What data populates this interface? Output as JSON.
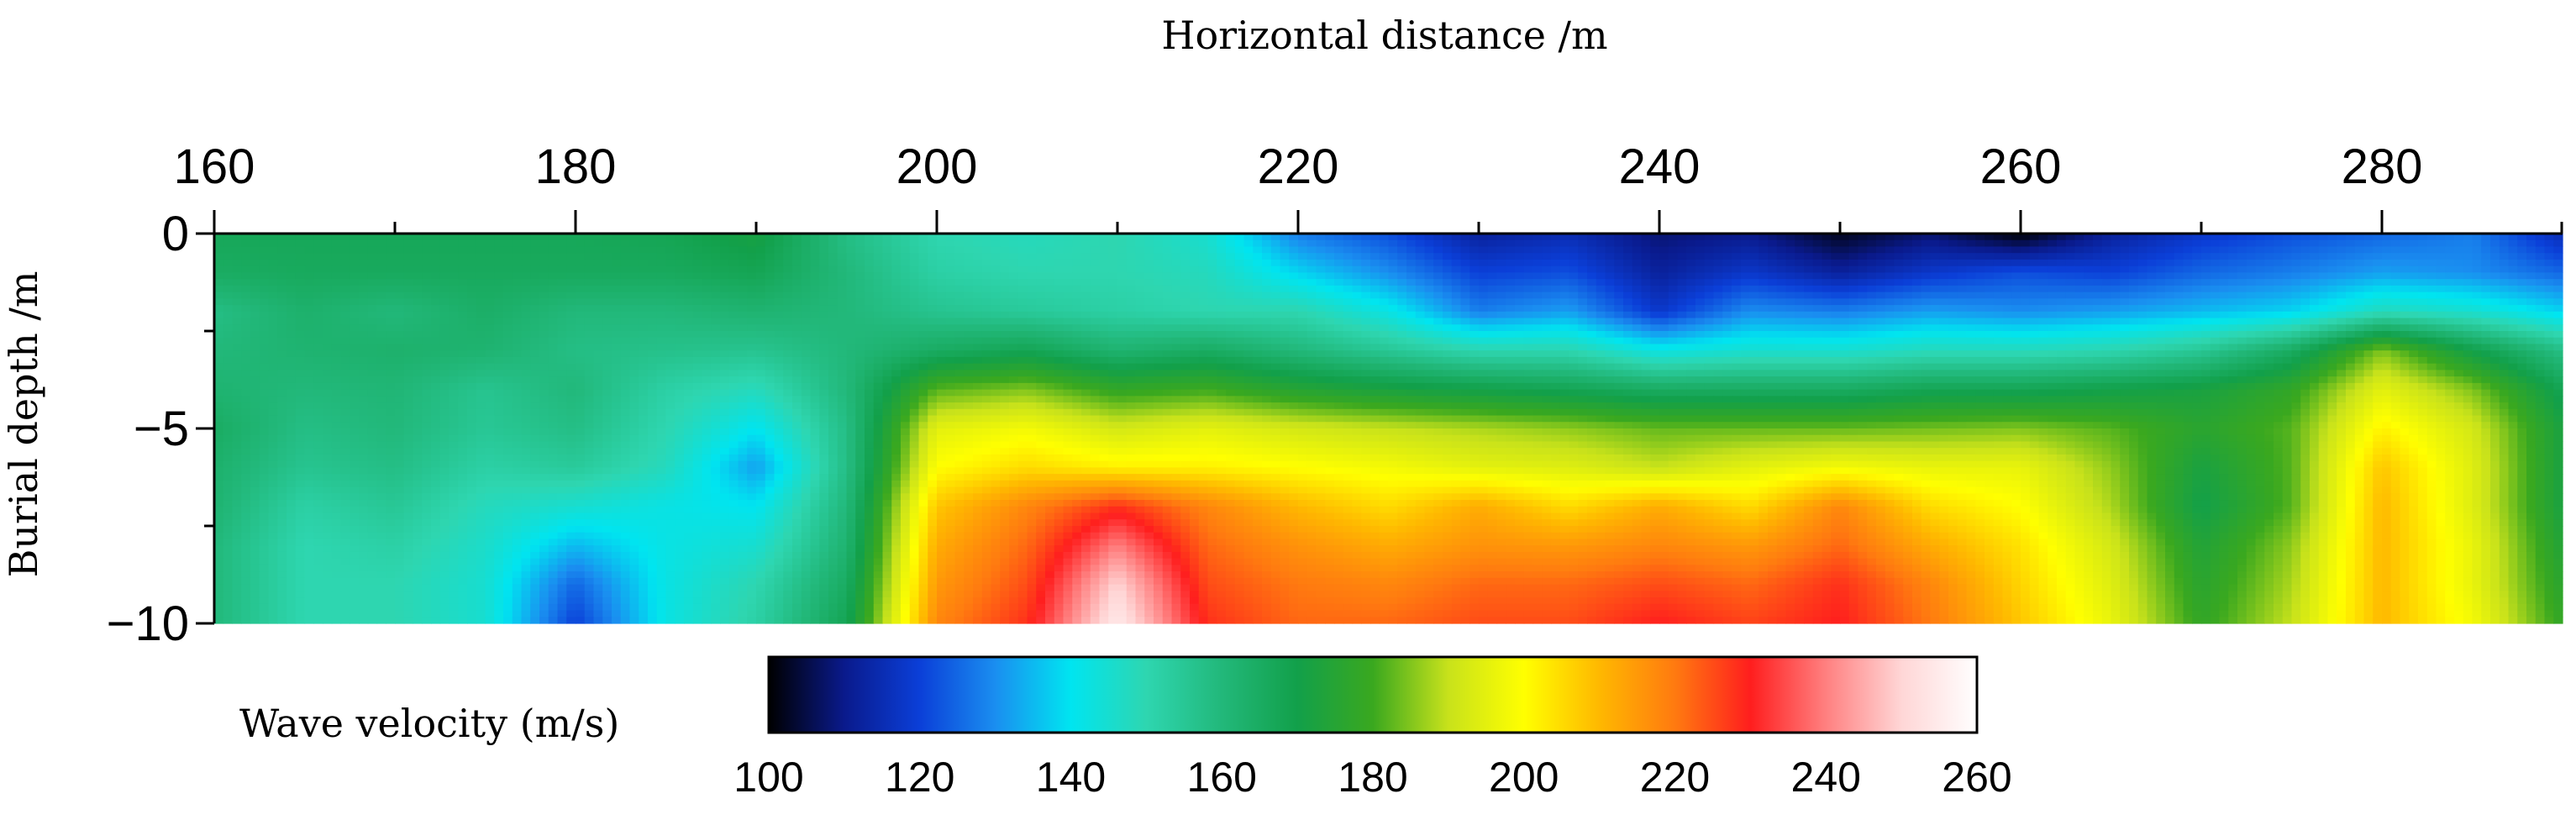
{
  "chart_data": {
    "type": "heatmap",
    "title": "",
    "xlabel": "Horizontal distance   /m",
    "ylabel": "Burial depth  /m",
    "xlim": [
      160,
      290
    ],
    "ylim": [
      -10,
      0
    ],
    "x_ticks": [
      "160",
      "180",
      "200",
      "220",
      "240",
      "260",
      "280"
    ],
    "x_tick_values": [
      160,
      180,
      200,
      220,
      240,
      260,
      280
    ],
    "y_ticks": [
      "0",
      "−5",
      "−10"
    ],
    "y_tick_values": [
      0,
      -5,
      -10
    ],
    "colorbar": {
      "label": "Wave velocity   (m/s)",
      "ticks": [
        "100",
        "120",
        "140",
        "160",
        "180",
        "200",
        "220",
        "240",
        "260"
      ],
      "tick_values": [
        100,
        120,
        140,
        160,
        180,
        200,
        220,
        240,
        260
      ],
      "range": [
        100,
        260
      ],
      "colors": [
        "#000000",
        "#0a1a8c",
        "#0b3fd8",
        "#1a8ef0",
        "#00e5f0",
        "#2ed6b0",
        "#22b87a",
        "#12a04a",
        "#3aa81f",
        "#c8e21b",
        "#ffff00",
        "#ffb800",
        "#ff7a10",
        "#ff1e1e",
        "#ff8080",
        "#ffd6d6",
        "#ffffff"
      ]
    },
    "depths": [
      0,
      -1,
      -2,
      -3,
      -4,
      -5,
      -6,
      -7,
      -8,
      -9,
      -10
    ],
    "x": [
      160,
      165,
      170,
      175,
      180,
      185,
      190,
      195,
      200,
      205,
      210,
      215,
      220,
      225,
      230,
      235,
      240,
      245,
      250,
      255,
      260,
      265,
      270,
      275,
      280,
      285,
      290
    ],
    "values": [
      [
        167,
        167,
        167,
        167,
        167,
        168,
        172,
        158,
        150,
        148,
        150,
        145,
        128,
        122,
        112,
        115,
        108,
        110,
        102,
        108,
        100,
        112,
        118,
        122,
        125,
        128,
        115
      ],
      [
        165,
        166,
        166,
        166,
        166,
        166,
        168,
        160,
        152,
        150,
        150,
        148,
        138,
        130,
        120,
        122,
        112,
        118,
        112,
        118,
        122,
        120,
        125,
        128,
        132,
        130,
        125
      ],
      [
        158,
        163,
        160,
        164,
        160,
        160,
        162,
        160,
        156,
        154,
        152,
        150,
        150,
        142,
        128,
        132,
        118,
        130,
        128,
        132,
        130,
        132,
        135,
        138,
        148,
        145,
        138
      ],
      [
        160,
        162,
        163,
        162,
        158,
        157,
        156,
        160,
        165,
        168,
        162,
        165,
        160,
        155,
        150,
        150,
        142,
        145,
        145,
        148,
        148,
        150,
        155,
        165,
        185,
        170,
        158
      ],
      [
        162,
        160,
        161,
        156,
        160,
        152,
        148,
        160,
        182,
        185,
        178,
        180,
        175,
        172,
        170,
        168,
        165,
        165,
        165,
        168,
        168,
        170,
        172,
        178,
        195,
        185,
        168
      ],
      [
        165,
        158,
        160,
        155,
        158,
        150,
        140,
        158,
        195,
        198,
        192,
        195,
        192,
        190,
        188,
        186,
        183,
        183,
        183,
        184,
        185,
        182,
        176,
        182,
        202,
        192,
        172
      ],
      [
        163,
        156,
        158,
        152,
        154,
        148,
        132,
        158,
        200,
        205,
        202,
        202,
        200,
        198,
        195,
        194,
        190,
        195,
        198,
        196,
        196,
        186,
        172,
        182,
        208,
        194,
        172
      ],
      [
        162,
        152,
        155,
        148,
        145,
        142,
        140,
        160,
        208,
        218,
        228,
        218,
        210,
        205,
        212,
        205,
        212,
        205,
        218,
        205,
        200,
        188,
        170,
        182,
        210,
        194,
        172
      ],
      [
        160,
        150,
        152,
        146,
        135,
        142,
        145,
        162,
        212,
        222,
        240,
        222,
        216,
        212,
        216,
        215,
        218,
        215,
        222,
        212,
        204,
        192,
        174,
        186,
        210,
        196,
        174
      ],
      [
        160,
        150,
        150,
        145,
        125,
        142,
        150,
        165,
        215,
        225,
        250,
        225,
        220,
        218,
        222,
        222,
        225,
        222,
        228,
        218,
        206,
        194,
        176,
        188,
        210,
        196,
        176
      ],
      [
        160,
        150,
        150,
        145,
        120,
        142,
        152,
        168,
        218,
        228,
        255,
        228,
        222,
        222,
        225,
        225,
        230,
        226,
        230,
        220,
        208,
        196,
        178,
        190,
        210,
        198,
        178
      ]
    ]
  }
}
